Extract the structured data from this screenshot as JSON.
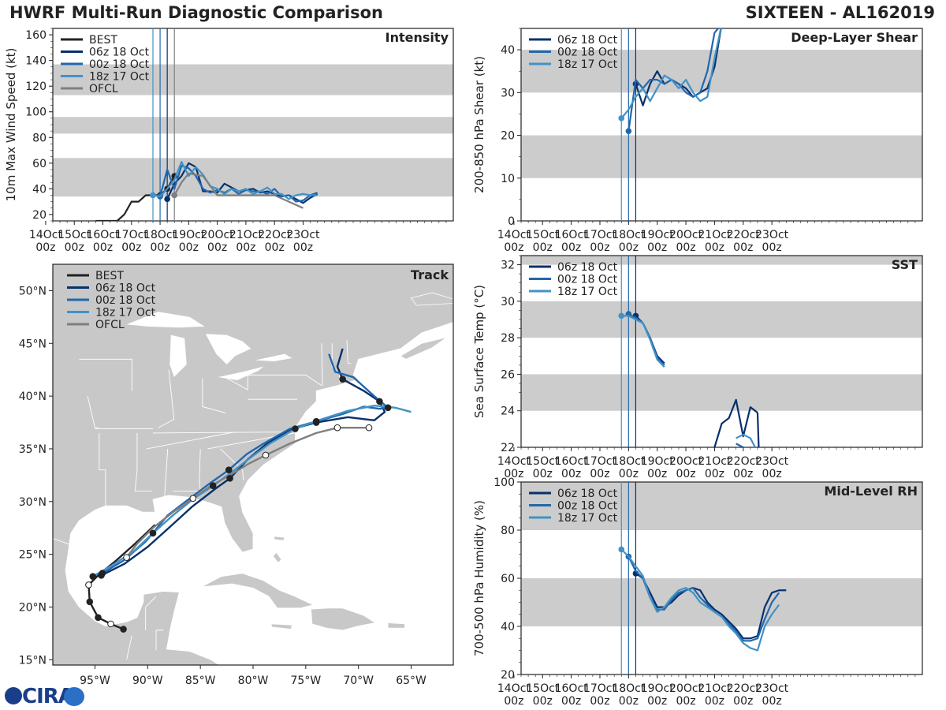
{
  "header": {
    "title": "HWRF Multi-Run Diagnostic Comparison",
    "storm": "SIXTEEN - AL162019"
  },
  "logo": {
    "text": "CIRA"
  },
  "colors": {
    "best": "#222222",
    "r06z": "#08306b",
    "r00z": "#2167ae",
    "r18z": "#4292c6",
    "ofcl": "#7f7f7f",
    "band": "#cccccc"
  },
  "time_ticks": [
    "14Oct\n00z",
    "15Oct\n00z",
    "16Oct\n00z",
    "17Oct\n00z",
    "18Oct\n00z",
    "19Oct\n00z",
    "20Oct\n00z",
    "21Oct\n00z",
    "22Oct\n00z",
    "23Oct\n00z"
  ],
  "init_lines_hours": [
    -6,
    0,
    6
  ],
  "chart_data": [
    {
      "id": "intensity",
      "type": "line",
      "panel_label": "Intensity",
      "ylabel": "10m Max Wind Speed (kt)",
      "ylim": [
        15,
        165
      ],
      "yticks": [
        20,
        40,
        60,
        80,
        100,
        120,
        140,
        160
      ],
      "bands": [
        [
          34,
          64
        ],
        [
          83,
          96
        ],
        [
          113,
          137
        ]
      ],
      "legend": [
        "BEST",
        "06z 18 Oct",
        "00z 18 Oct",
        "18z 17 Oct",
        "OFCL"
      ],
      "extra_vline_hours": 12,
      "series": [
        {
          "name": "BEST",
          "key": "best",
          "x": [
            -54,
            -36,
            -30,
            -24,
            -18,
            -12,
            -6,
            0,
            6,
            12
          ],
          "y": [
            15,
            15,
            20,
            30,
            30,
            35,
            35,
            35,
            40,
            50
          ],
          "markers": [
            0,
            6,
            12
          ]
        },
        {
          "name": "06z 18 Oct",
          "key": "r06z",
          "x": [
            6,
            12,
            18,
            24,
            30,
            36,
            42,
            48,
            54,
            60,
            66,
            72,
            78,
            84,
            90,
            96,
            102,
            108,
            114,
            120,
            126,
            132
          ],
          "y": [
            32,
            44,
            50,
            60,
            57,
            38,
            38,
            37,
            44,
            41,
            38,
            39,
            40,
            37,
            38,
            36,
            34,
            35,
            32,
            29,
            33,
            36
          ],
          "markers": [
            6
          ]
        },
        {
          "name": "00z 18 Oct",
          "key": "r00z",
          "x": [
            0,
            6,
            12,
            18,
            24,
            30,
            36,
            42,
            48,
            54,
            60,
            66,
            72,
            78,
            84,
            90,
            96,
            102,
            108,
            114,
            120,
            126,
            132
          ],
          "y": [
            34,
            55,
            40,
            58,
            56,
            50,
            40,
            37,
            39,
            37,
            40,
            36,
            39,
            38,
            38,
            36,
            40,
            34,
            35,
            30,
            31,
            35,
            37
          ],
          "markers": [
            0
          ]
        },
        {
          "name": "18z 17 Oct",
          "key": "r18z",
          "x": [
            -6,
            0,
            6,
            12,
            18,
            24,
            30,
            36,
            42,
            48,
            54,
            60,
            66,
            72,
            78,
            84,
            90,
            96,
            102,
            108,
            114,
            120,
            126,
            132
          ],
          "y": [
            35,
            34,
            40,
            47,
            61,
            50,
            57,
            51,
            42,
            40,
            36,
            40,
            38,
            40,
            36,
            38,
            41,
            36,
            36,
            32,
            35,
            36,
            35,
            35
          ],
          "markers": [
            -6
          ]
        },
        {
          "name": "OFCL",
          "key": "ofcl",
          "x": [
            12,
            18,
            24,
            36,
            48,
            60,
            72,
            84,
            96,
            108,
            120
          ],
          "y": [
            35,
            45,
            52,
            50,
            35,
            35,
            35,
            35,
            35,
            30,
            25
          ],
          "markers": [
            12
          ]
        }
      ]
    },
    {
      "id": "shear",
      "type": "line",
      "panel_label": "Deep-Layer Shear",
      "ylabel": "200-850 hPa Shear (kt)",
      "ylim": [
        0,
        45
      ],
      "yticks": [
        0,
        10,
        20,
        30,
        40
      ],
      "bands": [
        [
          10,
          20
        ],
        [
          30,
          40
        ]
      ],
      "legend": [
        "06z 18 Oct",
        "00z 18 Oct",
        "18z 17 Oct"
      ],
      "series": [
        {
          "name": "06z 18 Oct",
          "key": "r06z",
          "x": [
            6,
            12,
            18,
            24,
            30,
            36,
            42,
            48,
            54,
            60,
            66,
            72,
            78
          ],
          "y": [
            32,
            27,
            32,
            35,
            32,
            33,
            32,
            31,
            29,
            30,
            31,
            36,
            46
          ],
          "markers": [
            6
          ]
        },
        {
          "name": "00z 18 Oct",
          "key": "r00z",
          "x": [
            0,
            6,
            12,
            18,
            24,
            30,
            36,
            42,
            48,
            54,
            60,
            66,
            72,
            78
          ],
          "y": [
            21,
            33,
            31,
            33,
            33,
            32,
            33,
            32,
            30,
            29,
            30,
            35,
            44,
            46
          ],
          "markers": [
            0
          ]
        },
        {
          "name": "18z 17 Oct",
          "key": "r18z",
          "x": [
            -6,
            0,
            6,
            12,
            18,
            24,
            30,
            36,
            42,
            48,
            54,
            60,
            66,
            72,
            78
          ],
          "y": [
            24,
            26,
            29,
            31,
            28,
            31,
            34,
            33,
            31,
            33,
            30,
            28,
            29,
            38,
            46
          ],
          "markers": [
            -6
          ]
        }
      ]
    },
    {
      "id": "sst",
      "type": "line",
      "panel_label": "SST",
      "ylabel": "Sea Surface Temp (°C)",
      "ylim": [
        22,
        32.5
      ],
      "yticks": [
        22,
        24,
        26,
        28,
        30,
        32
      ],
      "bands": [
        [
          24,
          26
        ],
        [
          28,
          30
        ],
        [
          32,
          32.5
        ]
      ],
      "legend": [
        "06z 18 Oct",
        "00z 18 Oct",
        "18z 17 Oct"
      ],
      "series": [
        {
          "name": "06z 18 Oct",
          "key": "r06z",
          "x": [
            6,
            12,
            18,
            24,
            30
          ],
          "y": [
            29.2,
            28.8,
            28.0,
            27.0,
            26.6
          ],
          "markers": [
            6
          ]
        },
        {
          "name": "00z 18 Oct",
          "key": "r00z",
          "x": [
            0,
            6,
            12,
            18,
            24,
            30
          ],
          "y": [
            29.3,
            29.1,
            28.8,
            28.0,
            26.9,
            26.5
          ],
          "markers": [
            0
          ]
        },
        {
          "name": "18z 17 Oct",
          "key": "r18z",
          "x": [
            -6,
            0,
            6,
            12,
            18,
            24,
            30
          ],
          "y": [
            29.2,
            29.2,
            29.0,
            28.8,
            27.9,
            26.8,
            26.4
          ],
          "markers": [
            -6
          ]
        },
        {
          "name": "06z 18 Oct b",
          "key": "r06z",
          "x": [
            72,
            78,
            84,
            90,
            96,
            102,
            108
          ],
          "y": [
            22.0,
            23.3,
            23.6,
            24.6,
            22.6,
            24.2,
            23.9
          ],
          "markers": []
        },
        {
          "name": "06z 18 Oct c",
          "key": "r06z",
          "x": [
            108,
            109
          ],
          "y": [
            23.9,
            22.0
          ],
          "markers": []
        },
        {
          "name": "18z 17 Oct b",
          "key": "r18z",
          "x": [
            90,
            96,
            102,
            106
          ],
          "y": [
            22.5,
            22.7,
            22.5,
            22.0
          ],
          "markers": []
        },
        {
          "name": "00z 18 Oct b",
          "key": "r00z",
          "x": [
            90,
            96
          ],
          "y": [
            22.2,
            22.0
          ],
          "markers": []
        }
      ]
    },
    {
      "id": "rh",
      "type": "line",
      "panel_label": "Mid-Level RH",
      "ylabel": "700-500 hPa Humidity (%)",
      "ylim": [
        20,
        100
      ],
      "yticks": [
        20,
        40,
        60,
        80,
        100
      ],
      "bands": [
        [
          40,
          60
        ],
        [
          80,
          100
        ]
      ],
      "legend": [
        "06z 18 Oct",
        "00z 18 Oct",
        "18z 17 Oct"
      ],
      "series": [
        {
          "name": "06z 18 Oct",
          "key": "r06z",
          "x": [
            6,
            12,
            18,
            24,
            30,
            36,
            42,
            48,
            54,
            60,
            66,
            72,
            78,
            84,
            90,
            96,
            102,
            108,
            114,
            120,
            126,
            132
          ],
          "y": [
            62,
            60,
            54,
            48,
            48,
            50,
            53,
            55,
            56,
            55,
            50,
            47,
            45,
            42,
            39,
            35,
            35,
            36,
            48,
            54,
            55,
            55
          ],
          "markers": [
            6
          ]
        },
        {
          "name": "00z 18 Oct",
          "key": "r00z",
          "x": [
            0,
            6,
            12,
            18,
            24,
            30,
            36,
            42,
            48,
            54,
            60,
            66,
            72,
            78,
            84,
            90,
            96,
            102,
            108,
            114,
            120,
            126
          ],
          "y": [
            69,
            63,
            60,
            52,
            47,
            47,
            51,
            54,
            55,
            56,
            52,
            49,
            46,
            44,
            41,
            38,
            34,
            34,
            35,
            43,
            50,
            54
          ],
          "markers": [
            0
          ]
        },
        {
          "name": "18z 17 Oct",
          "key": "r18z",
          "x": [
            -6,
            0,
            6,
            12,
            18,
            24,
            30,
            36,
            42,
            48,
            54,
            60,
            66,
            72,
            78,
            84,
            90,
            96,
            102,
            108,
            114,
            120,
            126
          ],
          "y": [
            72,
            69,
            65,
            61,
            52,
            46,
            48,
            52,
            55,
            56,
            54,
            50,
            48,
            46,
            44,
            40,
            37,
            33,
            31,
            30,
            40,
            45,
            49
          ],
          "markers": [
            -6
          ]
        }
      ]
    },
    {
      "id": "track",
      "type": "line",
      "panel_label": "Track",
      "xlabel_ticks": [
        "95°W",
        "90°W",
        "85°W",
        "80°W",
        "75°W",
        "70°W",
        "65°W"
      ],
      "ylabel_ticks": [
        "15°N",
        "20°N",
        "25°N",
        "30°N",
        "35°N",
        "40°N",
        "45°N",
        "50°N"
      ],
      "xlim": [
        -99,
        -61
      ],
      "ylim": [
        14.5,
        52.5
      ],
      "lon_ticks": [
        -95,
        -90,
        -85,
        -80,
        -75,
        -70,
        -65
      ],
      "lat_ticks": [
        15,
        20,
        25,
        30,
        35,
        40,
        45,
        50
      ],
      "legend": [
        "BEST",
        "06z 18 Oct",
        "00z 18 Oct",
        "18z 17 Oct",
        "OFCL"
      ],
      "series": [
        {
          "name": "BEST",
          "key": "best",
          "lon": [
            -92.3,
            -93.5,
            -94.7,
            -95.5,
            -95.6,
            -94.6,
            -93.0,
            -91.2,
            -89.3
          ],
          "lat": [
            17.9,
            18.4,
            19.0,
            20.5,
            22.1,
            23.1,
            24.4,
            26.0,
            27.8
          ],
          "markers": [
            0,
            1,
            2,
            3,
            4
          ]
        },
        {
          "name": "06z 18 Oct",
          "key": "r06z",
          "lon": [
            -94.4,
            -92.2,
            -90.0,
            -88.0,
            -85.8,
            -83.6,
            -82.2,
            -80.5,
            -78.8,
            -76.5,
            -74.0,
            -71.0,
            -68.5,
            -67.5,
            -68.0,
            -69.5,
            -71.5,
            -72.0,
            -71.5
          ],
          "lat": [
            23.0,
            24.1,
            25.7,
            27.5,
            29.5,
            31.2,
            32.2,
            34.0,
            35.4,
            36.8,
            37.5,
            38.0,
            37.7,
            38.5,
            39.5,
            40.5,
            41.6,
            42.8,
            44.5
          ],
          "markers": [
            0,
            6,
            10,
            14,
            16
          ]
        },
        {
          "name": "00z 18 Oct",
          "key": "r00z",
          "lon": [
            -94.3,
            -92.3,
            -90.2,
            -88.1,
            -86.0,
            -84.0,
            -82.3,
            -80.6,
            -79.0,
            -76.5,
            -74.0,
            -71.5,
            -69.5,
            -68.0,
            -67.2,
            -68.5,
            -70.5,
            -72.2,
            -72.8
          ],
          "lat": [
            23.2,
            24.4,
            26.2,
            28.7,
            30.3,
            31.8,
            33.0,
            34.5,
            35.5,
            36.9,
            37.6,
            38.3,
            39.0,
            38.8,
            38.9,
            40.0,
            41.8,
            42.3,
            44.0
          ],
          "markers": [
            0,
            6,
            10,
            14
          ]
        },
        {
          "name": "18z 17 Oct",
          "key": "r18z",
          "lon": [
            -95.2,
            -93.3,
            -91.3,
            -89.5,
            -87.6,
            -85.6,
            -83.8,
            -82.0,
            -80.2,
            -78.4,
            -76.0,
            -73.5,
            -71.0,
            -68.5,
            -66.5,
            -65.0
          ],
          "lat": [
            22.9,
            24.0,
            25.3,
            27.0,
            28.7,
            30.3,
            31.5,
            32.8,
            34.2,
            35.5,
            36.9,
            37.8,
            38.6,
            39.1,
            38.9,
            38.5
          ],
          "markers": [
            0,
            3,
            6,
            10
          ]
        },
        {
          "name": "OFCL",
          "key": "ofcl",
          "lon": [
            -92.0,
            -91.0,
            -89.5,
            -87.6,
            -85.7,
            -84.0,
            -82.2,
            -80.4,
            -78.8,
            -76.5,
            -74.0,
            -72.0,
            -70.0,
            -69.0
          ],
          "lat": [
            24.7,
            26.0,
            27.5,
            29.0,
            30.3,
            31.5,
            32.5,
            33.6,
            34.4,
            35.5,
            36.5,
            37.0,
            37.0,
            37.0
          ],
          "markers": [
            0,
            4,
            8,
            11,
            13
          ]
        }
      ]
    }
  ]
}
